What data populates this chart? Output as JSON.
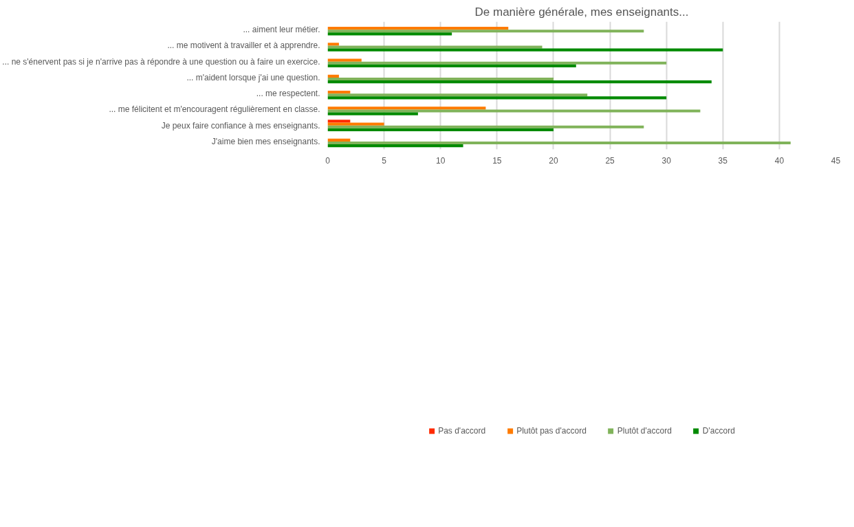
{
  "chart_data": {
    "type": "bar",
    "orientation": "horizontal",
    "title": "De manière générale, mes enseignants...",
    "categories": [
      "... aiment leur métier.",
      "... me motivent à travailler et à apprendre.",
      "... ne s'énervent pas si je n'arrive pas à répondre à une question ou à faire un exercice.",
      "... m'aident lorsque j'ai une question.",
      "... me respectent.",
      "... me félicitent et m'encouragent régulièrement en classe.",
      "Je peux faire confiance à mes enseignants.",
      "J'aime bien mes enseignants."
    ],
    "series": [
      {
        "name": "Pas d'accord",
        "color": "#ff2a00",
        "values": [
          0,
          0,
          0,
          0,
          0,
          0,
          2,
          0
        ]
      },
      {
        "name": "Plutôt pas d'accord",
        "color": "#ff7b00",
        "values": [
          16,
          1,
          3,
          1,
          2,
          14,
          5,
          2
        ]
      },
      {
        "name": "Plutôt d'accord",
        "color": "#80b35a",
        "values": [
          28,
          19,
          30,
          20,
          23,
          33,
          28,
          41
        ]
      },
      {
        "name": "D'accord",
        "color": "#008a00",
        "values": [
          11,
          35,
          22,
          34,
          30,
          8,
          20,
          12
        ]
      }
    ],
    "xlim": [
      0,
      45
    ],
    "xticks": [
      0,
      5,
      10,
      15,
      20,
      25,
      30,
      35,
      40,
      45
    ],
    "grid": "x",
    "legend": "bottom"
  }
}
